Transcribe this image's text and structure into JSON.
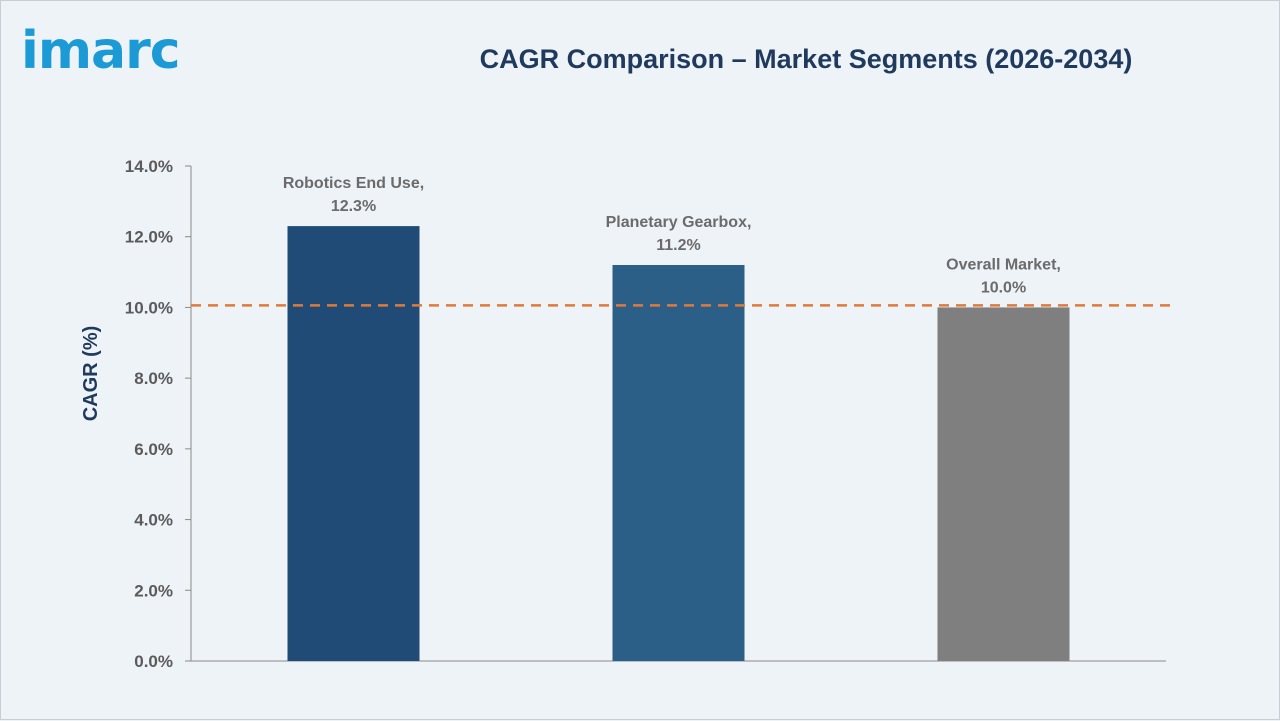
{
  "logo_text": "imarc",
  "chart_data": {
    "type": "bar",
    "title": "CAGR Comparison – Market Segments (2026-2034)",
    "xlabel": "",
    "ylabel": "CAGR (%)",
    "ylim": [
      0,
      14
    ],
    "yticks": [
      "0.0%",
      "2.0%",
      "4.0%",
      "6.0%",
      "8.0%",
      "10.0%",
      "12.0%",
      "14.0%"
    ],
    "grid": false,
    "legend": "none",
    "categories": [
      "Robotics End Use",
      "Planetary Gearbox",
      "Overall Market"
    ],
    "values": [
      12.3,
      11.2,
      10.0
    ],
    "data_labels": [
      [
        "Robotics End Use,",
        "12.3%"
      ],
      [
        "Planetary Gearbox,",
        "11.2%"
      ],
      [
        "Overall Market,",
        "10.0%"
      ]
    ],
    "colors": [
      "#1f4b76",
      "#2c5f88",
      "#7f7f7f"
    ],
    "reference_line": {
      "value": 10.0,
      "style": "dashed",
      "color": "#e07a3a"
    }
  }
}
